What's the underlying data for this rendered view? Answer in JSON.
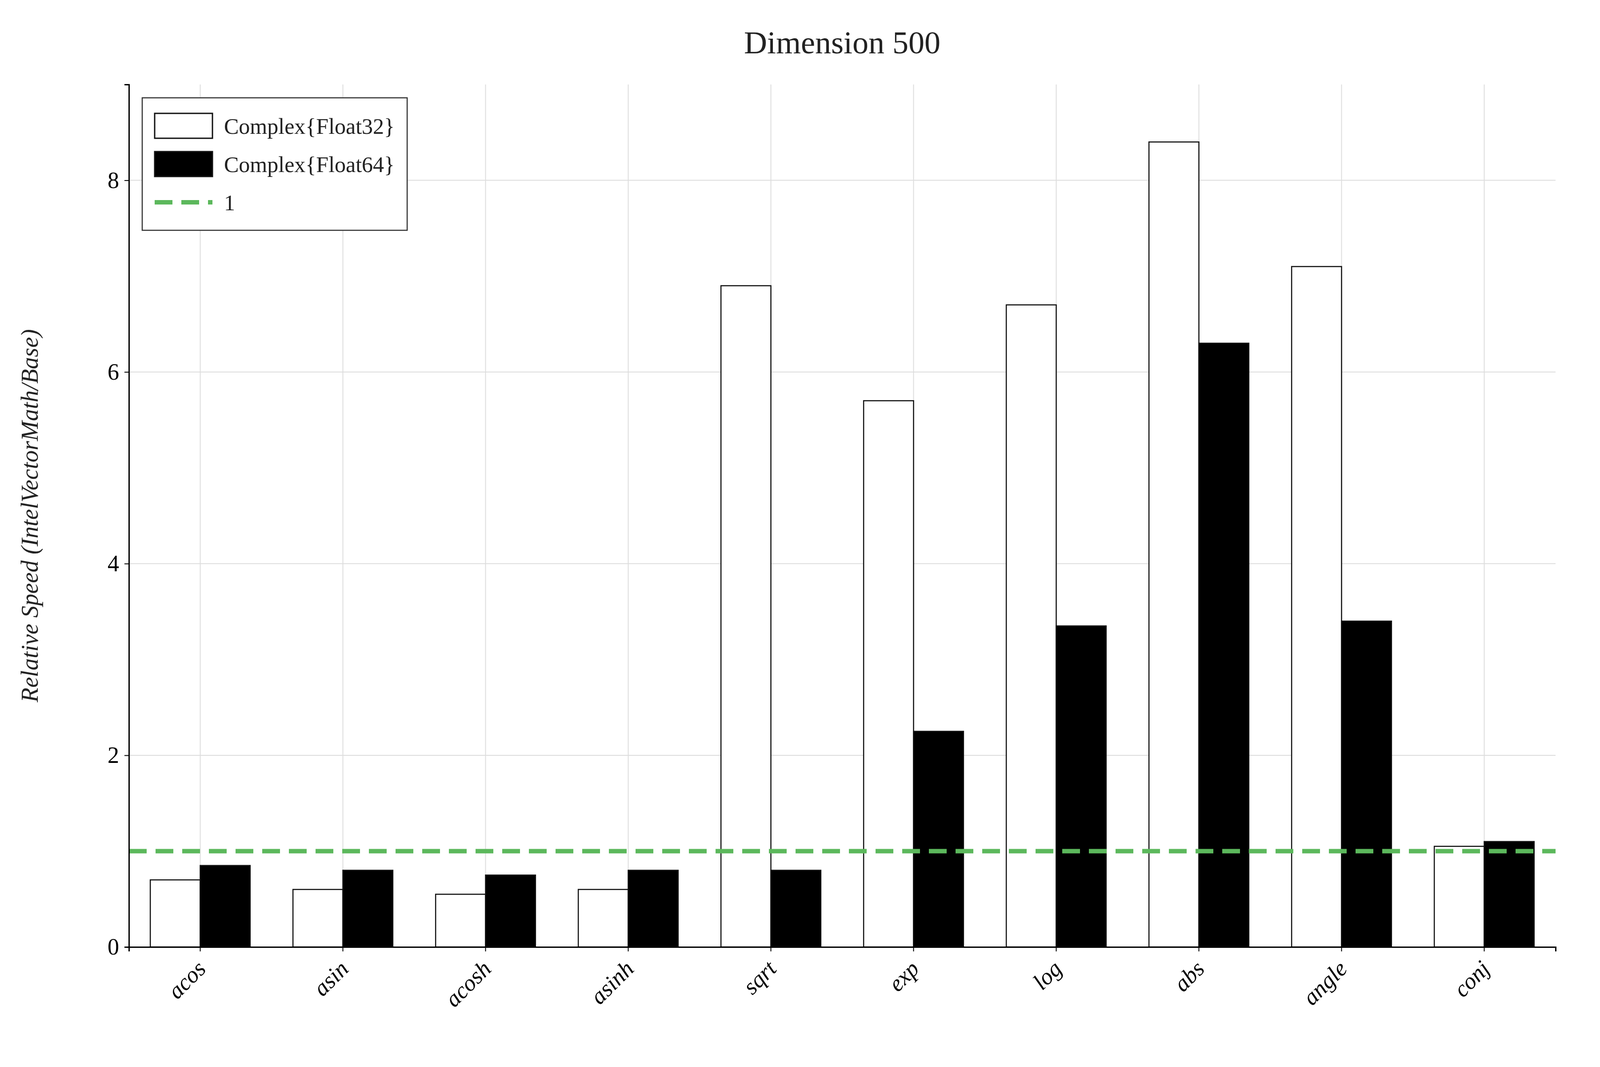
{
  "chart_data": {
    "type": "bar",
    "title": "Dimension 500",
    "ylabel": "Relative Speed (IntelVectorMath/Base)",
    "categories": [
      "acos",
      "asin",
      "acosh",
      "asinh",
      "sqrt",
      "exp",
      "log",
      "abs",
      "angle",
      "conj"
    ],
    "series": [
      {
        "name": "Complex{Float32}",
        "color": "#ffffff",
        "values": [
          0.7,
          0.6,
          0.55,
          0.6,
          6.9,
          5.7,
          6.7,
          8.4,
          7.1,
          1.05
        ]
      },
      {
        "name": "Complex{Float64}",
        "color": "#000000",
        "values": [
          0.85,
          0.8,
          0.75,
          0.8,
          0.8,
          2.25,
          3.35,
          6.3,
          3.4,
          1.1
        ]
      }
    ],
    "reference_line": {
      "name": "1",
      "value": 1.0,
      "color": "#5cb85c",
      "line_style": "dashed"
    },
    "ylim": [
      0,
      9.0
    ],
    "yticks": [
      0,
      2,
      4,
      6,
      8
    ],
    "grid": true,
    "legend": "upper left"
  }
}
